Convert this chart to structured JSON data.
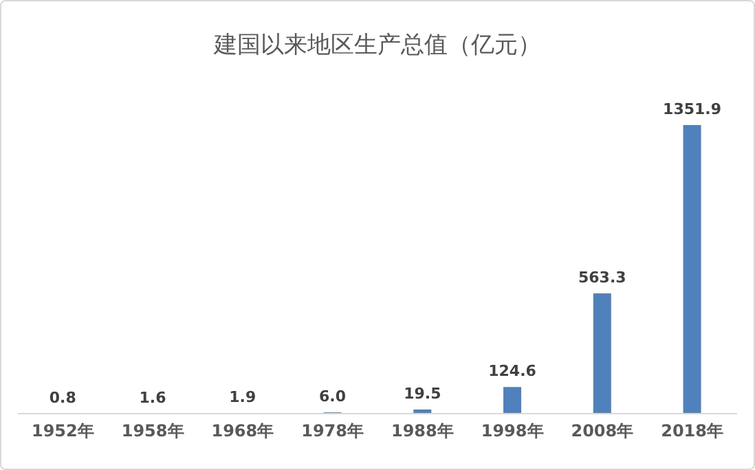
{
  "chart_data": {
    "type": "bar",
    "title": "建国以来地区生产总值（亿元）",
    "categories": [
      "1952年",
      "1958年",
      "1968年",
      "1978年",
      "1988年",
      "1998年",
      "2008年",
      "2018年"
    ],
    "values": [
      0.8,
      1.6,
      1.9,
      6.0,
      19.5,
      124.6,
      563.3,
      1351.9
    ],
    "value_labels": [
      "0.8",
      "1.6",
      "1.9",
      "6.0",
      "19.5",
      "124.6",
      "563.3",
      "1351.9"
    ],
    "color": "#4f81bd",
    "grid": false,
    "legend": false
  }
}
